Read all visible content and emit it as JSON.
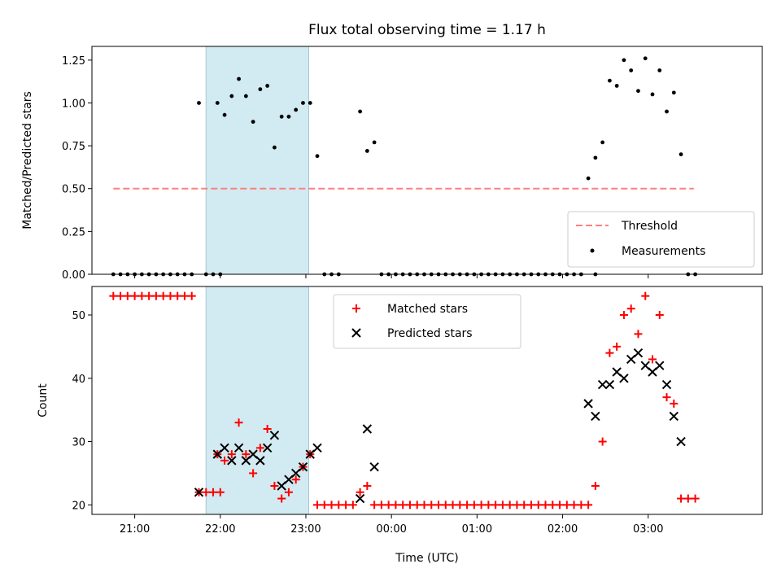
{
  "chart_data": [
    {
      "type": "scatter",
      "title": "Flux total observing time = 1.17 h",
      "ylabel": "Matched/Predicted stars",
      "xlabel": "",
      "ylim": [
        0,
        1.33
      ],
      "xlim": [
        "20:30",
        "04:20"
      ],
      "shaded_interval": [
        "21:50",
        "23:02"
      ],
      "yticks": [
        "0.00",
        "0.25",
        "0.50",
        "0.75",
        "1.00",
        "1.25"
      ],
      "ytick_values": [
        0,
        0.25,
        0.5,
        0.75,
        1.0,
        1.25
      ],
      "legend": {
        "position": "lower right",
        "entries": [
          "Threshold",
          "Measurements"
        ]
      },
      "threshold": {
        "name": "Threshold",
        "y": 0.5,
        "x_start": "20:45",
        "x_end": "03:32",
        "color": "#ff7f7f",
        "style": "dashed"
      },
      "series": [
        {
          "name": "Measurements",
          "color": "#000000",
          "points": [
            [
              "20:45",
              0
            ],
            [
              "20:50",
              0
            ],
            [
              "20:55",
              0
            ],
            [
              "21:00",
              0
            ],
            [
              "21:05",
              0
            ],
            [
              "21:10",
              0
            ],
            [
              "21:15",
              0
            ],
            [
              "21:20",
              0
            ],
            [
              "21:25",
              0
            ],
            [
              "21:30",
              0
            ],
            [
              "21:35",
              0
            ],
            [
              "21:40",
              0
            ],
            [
              "21:45",
              1.0
            ],
            [
              "21:50",
              0
            ],
            [
              "21:55",
              0
            ],
            [
              "22:00",
              0
            ],
            [
              "21:58",
              1.0
            ],
            [
              "22:03",
              0.93
            ],
            [
              "22:08",
              1.04
            ],
            [
              "22:13",
              1.14
            ],
            [
              "22:18",
              1.04
            ],
            [
              "22:23",
              0.89
            ],
            [
              "22:28",
              1.08
            ],
            [
              "22:33",
              1.1
            ],
            [
              "22:38",
              0.74
            ],
            [
              "22:43",
              0.92
            ],
            [
              "22:48",
              0.92
            ],
            [
              "22:53",
              0.96
            ],
            [
              "22:58",
              1.0
            ],
            [
              "23:03",
              1.0
            ],
            [
              "23:08",
              0.69
            ],
            [
              "23:13",
              0
            ],
            [
              "23:18",
              0
            ],
            [
              "23:23",
              0
            ],
            [
              "23:38",
              0.95
            ],
            [
              "23:43",
              0.72
            ],
            [
              "23:48",
              0.77
            ],
            [
              "23:53",
              0
            ],
            [
              "23:58",
              0
            ],
            [
              "00:03",
              0
            ],
            [
              "00:08",
              0
            ],
            [
              "00:13",
              0
            ],
            [
              "00:18",
              0
            ],
            [
              "00:23",
              0
            ],
            [
              "00:28",
              0
            ],
            [
              "00:33",
              0
            ],
            [
              "00:38",
              0
            ],
            [
              "00:43",
              0
            ],
            [
              "00:48",
              0
            ],
            [
              "00:53",
              0
            ],
            [
              "00:58",
              0
            ],
            [
              "01:03",
              0
            ],
            [
              "01:08",
              0
            ],
            [
              "01:13",
              0
            ],
            [
              "01:18",
              0
            ],
            [
              "01:23",
              0
            ],
            [
              "01:28",
              0
            ],
            [
              "01:33",
              0
            ],
            [
              "01:38",
              0
            ],
            [
              "01:43",
              0
            ],
            [
              "01:48",
              0
            ],
            [
              "01:53",
              0
            ],
            [
              "01:58",
              0
            ],
            [
              "02:03",
              0
            ],
            [
              "02:08",
              0
            ],
            [
              "02:13",
              0
            ],
            [
              "02:23",
              0
            ],
            [
              "02:18",
              0.56
            ],
            [
              "02:23",
              0.68
            ],
            [
              "02:28",
              0.77
            ],
            [
              "02:33",
              1.13
            ],
            [
              "02:38",
              1.1
            ],
            [
              "02:43",
              1.25
            ],
            [
              "02:48",
              1.19
            ],
            [
              "02:53",
              1.07
            ],
            [
              "02:58",
              1.26
            ],
            [
              "03:03",
              1.05
            ],
            [
              "03:08",
              1.19
            ],
            [
              "03:13",
              0.95
            ],
            [
              "03:18",
              1.06
            ],
            [
              "03:23",
              0.7
            ],
            [
              "03:28",
              0
            ],
            [
              "03:33",
              0
            ]
          ]
        }
      ]
    },
    {
      "type": "scatter",
      "title": "",
      "ylabel": "Count",
      "xlabel": "Time (UTC)",
      "ylim": [
        18.5,
        54.5
      ],
      "xlim": [
        "20:30",
        "04:20"
      ],
      "shaded_interval": [
        "21:50",
        "23:02"
      ],
      "yticks": [
        "20",
        "30",
        "40",
        "50"
      ],
      "ytick_values": [
        20,
        30,
        40,
        50
      ],
      "xticks": [
        "21:00",
        "22:00",
        "23:00",
        "00:00",
        "01:00",
        "02:00",
        "03:00"
      ],
      "legend": {
        "position": "upper center",
        "entries": [
          "Matched stars",
          "Predicted stars"
        ]
      },
      "series": [
        {
          "name": "Matched stars",
          "marker": "plus",
          "color": "#ff0000",
          "points": [
            [
              "20:45",
              53
            ],
            [
              "20:50",
              53
            ],
            [
              "20:55",
              53
            ],
            [
              "21:00",
              53
            ],
            [
              "21:05",
              53
            ],
            [
              "21:10",
              53
            ],
            [
              "21:15",
              53
            ],
            [
              "21:20",
              53
            ],
            [
              "21:25",
              53
            ],
            [
              "21:30",
              53
            ],
            [
              "21:35",
              53
            ],
            [
              "21:40",
              53
            ],
            [
              "21:45",
              22
            ],
            [
              "21:50",
              22
            ],
            [
              "21:55",
              22
            ],
            [
              "22:00",
              22
            ],
            [
              "21:58",
              28
            ],
            [
              "22:03",
              27
            ],
            [
              "22:08",
              28
            ],
            [
              "22:13",
              33
            ],
            [
              "22:18",
              28
            ],
            [
              "22:23",
              25
            ],
            [
              "22:28",
              29
            ],
            [
              "22:33",
              32
            ],
            [
              "22:38",
              23
            ],
            [
              "22:43",
              21
            ],
            [
              "22:48",
              22
            ],
            [
              "22:53",
              24
            ],
            [
              "22:58",
              26
            ],
            [
              "23:03",
              28
            ],
            [
              "23:08",
              20
            ],
            [
              "23:13",
              20
            ],
            [
              "23:18",
              20
            ],
            [
              "23:23",
              20
            ],
            [
              "23:28",
              20
            ],
            [
              "23:33",
              20
            ],
            [
              "23:38",
              22
            ],
            [
              "23:43",
              23
            ],
            [
              "23:48",
              20
            ],
            [
              "23:53",
              20
            ],
            [
              "23:58",
              20
            ],
            [
              "00:03",
              20
            ],
            [
              "00:08",
              20
            ],
            [
              "00:13",
              20
            ],
            [
              "00:18",
              20
            ],
            [
              "00:23",
              20
            ],
            [
              "00:28",
              20
            ],
            [
              "00:33",
              20
            ],
            [
              "00:38",
              20
            ],
            [
              "00:43",
              20
            ],
            [
              "00:48",
              20
            ],
            [
              "00:53",
              20
            ],
            [
              "00:58",
              20
            ],
            [
              "01:03",
              20
            ],
            [
              "01:08",
              20
            ],
            [
              "01:13",
              20
            ],
            [
              "01:18",
              20
            ],
            [
              "01:23",
              20
            ],
            [
              "01:28",
              20
            ],
            [
              "01:33",
              20
            ],
            [
              "01:38",
              20
            ],
            [
              "01:43",
              20
            ],
            [
              "01:48",
              20
            ],
            [
              "01:53",
              20
            ],
            [
              "01:58",
              20
            ],
            [
              "02:03",
              20
            ],
            [
              "02:08",
              20
            ],
            [
              "02:13",
              20
            ],
            [
              "02:18",
              20
            ],
            [
              "02:23",
              23
            ],
            [
              "02:28",
              30
            ],
            [
              "02:33",
              44
            ],
            [
              "02:38",
              45
            ],
            [
              "02:43",
              50
            ],
            [
              "02:48",
              51
            ],
            [
              "02:53",
              47
            ],
            [
              "02:58",
              53
            ],
            [
              "03:03",
              43
            ],
            [
              "03:08",
              50
            ],
            [
              "03:13",
              37
            ],
            [
              "03:18",
              36
            ],
            [
              "03:23",
              21
            ],
            [
              "03:28",
              21
            ],
            [
              "03:33",
              21
            ]
          ]
        },
        {
          "name": "Predicted stars",
          "marker": "x",
          "color": "#000000",
          "points": [
            [
              "21:45",
              22
            ],
            [
              "21:58",
              28
            ],
            [
              "22:03",
              29
            ],
            [
              "22:08",
              27
            ],
            [
              "22:13",
              29
            ],
            [
              "22:18",
              27
            ],
            [
              "22:23",
              28
            ],
            [
              "22:28",
              27
            ],
            [
              "22:33",
              29
            ],
            [
              "22:38",
              31
            ],
            [
              "22:43",
              23
            ],
            [
              "22:48",
              24
            ],
            [
              "22:53",
              25
            ],
            [
              "22:58",
              26
            ],
            [
              "23:03",
              28
            ],
            [
              "23:08",
              29
            ],
            [
              "23:38",
              21
            ],
            [
              "23:43",
              32
            ],
            [
              "23:48",
              26
            ],
            [
              "02:18",
              36
            ],
            [
              "02:23",
              34
            ],
            [
              "02:28",
              39
            ],
            [
              "02:33",
              39
            ],
            [
              "02:38",
              41
            ],
            [
              "02:43",
              40
            ],
            [
              "02:48",
              43
            ],
            [
              "02:53",
              44
            ],
            [
              "02:58",
              42
            ],
            [
              "03:03",
              41
            ],
            [
              "03:08",
              42
            ],
            [
              "03:13",
              39
            ],
            [
              "03:18",
              34
            ],
            [
              "03:23",
              30
            ]
          ]
        }
      ]
    }
  ]
}
